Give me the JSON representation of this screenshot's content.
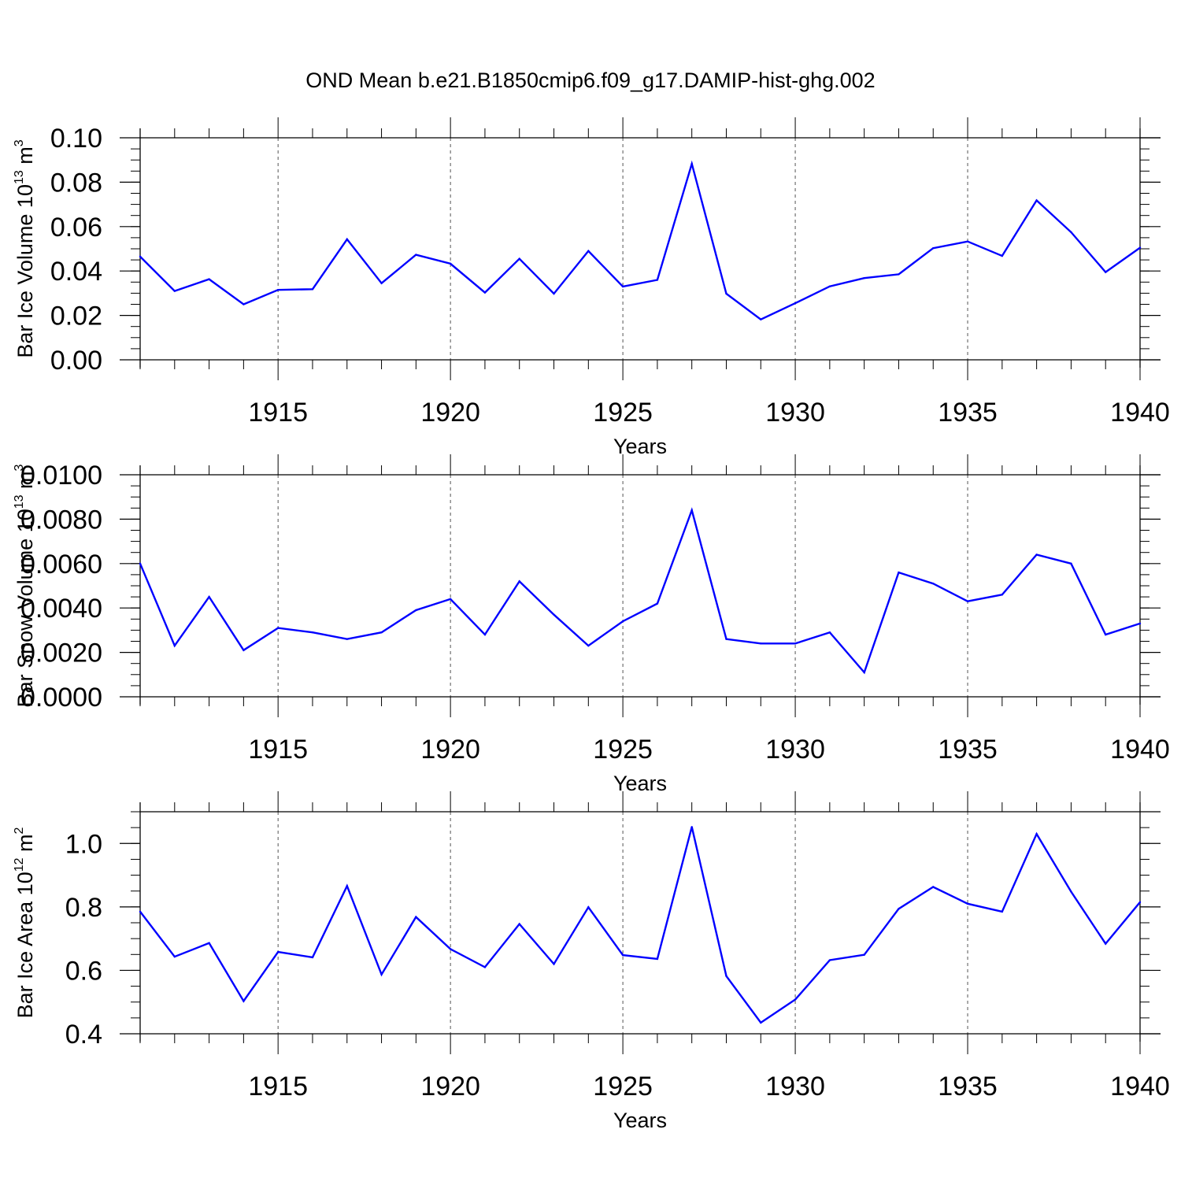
{
  "chart_title": "OND Mean b.e21.B1850cmip6.f09_g17.DAMIP-hist-ghg.002",
  "colors": {
    "series": "#0000ff",
    "axes": "#000000",
    "grid": "#555555"
  },
  "chart_data": [
    {
      "type": "line",
      "title": "OND Mean b.e21.B1850cmip6.f09_g17.DAMIP-hist-ghg.002",
      "xlabel": "Years",
      "ylabel": "Bar Ice Volume 10",
      "ylabel_exp": "13",
      "ylabel_unit": " m",
      "ylabel_unit_exp": "3",
      "xlim": [
        1911,
        1940
      ],
      "ylim": [
        0,
        0.1
      ],
      "xticks": [
        1915,
        1920,
        1925,
        1930,
        1935,
        1940
      ],
      "xtick_labels": [
        "1915",
        "1920",
        "1925",
        "1930",
        "1935",
        "1940"
      ],
      "yticks": [
        0,
        0.02,
        0.04,
        0.06,
        0.08,
        0.1
      ],
      "ytick_labels": [
        "0.00",
        "0.02",
        "0.04",
        "0.06",
        "0.08",
        "0.10"
      ],
      "yminor_step": 0.005,
      "grid": "vertical dashed at major x ticks",
      "x": [
        1911,
        1912,
        1913,
        1914,
        1915,
        1916,
        1917,
        1918,
        1919,
        1920,
        1921,
        1922,
        1923,
        1924,
        1925,
        1926,
        1927,
        1928,
        1929,
        1930,
        1931,
        1932,
        1933,
        1934,
        1935,
        1936,
        1937,
        1938,
        1939,
        1940
      ],
      "values": [
        0.0465,
        0.031,
        0.0363,
        0.025,
        0.0315,
        0.0318,
        0.0543,
        0.0345,
        0.0473,
        0.0433,
        0.0303,
        0.0455,
        0.0298,
        0.049,
        0.033,
        0.036,
        0.0883,
        0.0298,
        0.0182,
        0.0255,
        0.0331,
        0.0368,
        0.0385,
        0.0503,
        0.0533,
        0.0468,
        0.0718,
        0.0575,
        0.0395,
        0.0505
      ]
    },
    {
      "type": "line",
      "xlabel": "Years",
      "ylabel": "Bar Snow Volume 10",
      "ylabel_exp": "13",
      "ylabel_unit": " m",
      "ylabel_unit_exp": "3",
      "xlim": [
        1911,
        1940
      ],
      "ylim": [
        0,
        0.01
      ],
      "xticks": [
        1915,
        1920,
        1925,
        1930,
        1935,
        1940
      ],
      "xtick_labels": [
        "1915",
        "1920",
        "1925",
        "1930",
        "1935",
        "1940"
      ],
      "yticks": [
        0,
        0.002,
        0.004,
        0.006,
        0.008,
        0.01
      ],
      "ytick_labels": [
        "0.0000",
        "0.0020",
        "0.0040",
        "0.0060",
        "0.0080",
        "0.0100"
      ],
      "yminor_step": 0.0005,
      "grid": "vertical dashed at major x ticks",
      "x": [
        1911,
        1912,
        1913,
        1914,
        1915,
        1916,
        1917,
        1918,
        1919,
        1920,
        1921,
        1922,
        1923,
        1924,
        1925,
        1926,
        1927,
        1928,
        1929,
        1930,
        1931,
        1932,
        1933,
        1934,
        1935,
        1936,
        1937,
        1938,
        1939,
        1940
      ],
      "values": [
        0.006,
        0.0023,
        0.0045,
        0.0021,
        0.0031,
        0.0029,
        0.0026,
        0.0029,
        0.0039,
        0.0044,
        0.0028,
        0.0052,
        0.0037,
        0.0023,
        0.0034,
        0.0042,
        0.0084,
        0.0026,
        0.0024,
        0.0024,
        0.0029,
        0.0011,
        0.0056,
        0.0051,
        0.0043,
        0.0046,
        0.0064,
        0.006,
        0.0028,
        0.0033
      ]
    },
    {
      "type": "line",
      "xlabel": "Years",
      "ylabel": "Bar Ice Area 10",
      "ylabel_exp": "12",
      "ylabel_unit": " m",
      "ylabel_unit_exp": "2",
      "xlim": [
        1911,
        1940
      ],
      "ylim": [
        0.4,
        1.1
      ],
      "xticks": [
        1915,
        1920,
        1925,
        1930,
        1935,
        1940
      ],
      "xtick_labels": [
        "1915",
        "1920",
        "1925",
        "1930",
        "1935",
        "1940"
      ],
      "yticks": [
        0.4,
        0.6,
        0.8,
        1.0
      ],
      "ytick_labels": [
        "0.4",
        "0.6",
        "0.8",
        "1.0"
      ],
      "yminor_step": 0.05,
      "grid": "vertical dashed at major x ticks",
      "x": [
        1911,
        1912,
        1913,
        1914,
        1915,
        1916,
        1917,
        1918,
        1919,
        1920,
        1921,
        1922,
        1923,
        1924,
        1925,
        1926,
        1927,
        1928,
        1929,
        1930,
        1931,
        1932,
        1933,
        1934,
        1935,
        1936,
        1937,
        1938,
        1939,
        1940
      ],
      "values": [
        0.785,
        0.643,
        0.686,
        0.503,
        0.658,
        0.641,
        0.866,
        0.587,
        0.768,
        0.667,
        0.61,
        0.746,
        0.62,
        0.799,
        0.648,
        0.636,
        1.052,
        0.582,
        0.435,
        0.508,
        0.632,
        0.649,
        0.794,
        0.863,
        0.81,
        0.785,
        1.03,
        0.848,
        0.684,
        0.815
      ]
    }
  ]
}
